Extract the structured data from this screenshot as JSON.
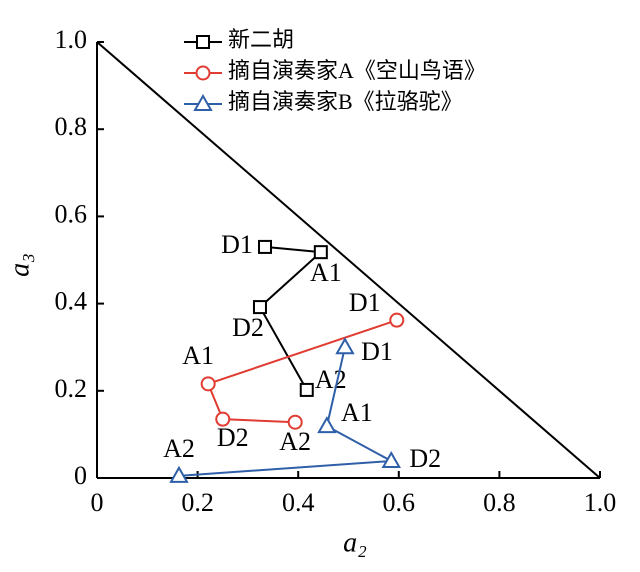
{
  "chart_data": {
    "type": "line",
    "xlabel": "a₂",
    "ylabel": "a₃",
    "xlim": [
      0,
      1
    ],
    "ylim": [
      0,
      1
    ],
    "xticks": [
      0,
      0.2,
      0.4,
      0.6,
      0.8,
      {
        "value": 1,
        "label": "1.0"
      }
    ],
    "yticks": [
      0,
      0.2,
      0.4,
      0.6,
      0.8,
      {
        "value": 1,
        "label": "1.0"
      }
    ],
    "boundary": {
      "x": [
        0,
        1
      ],
      "y": [
        1,
        0
      ],
      "color": "#000000"
    },
    "series": [
      {
        "name": "新二胡",
        "color": "#000000",
        "marker": "square",
        "x": [
          0.334,
          0.445,
          0.324,
          0.417
        ],
        "values": [
          0.53,
          0.518,
          0.392,
          0.202
        ],
        "point_labels": [
          "D1",
          "A1",
          "D2",
          "A2"
        ]
      },
      {
        "name": "摘自演奏家A《空山鸟语》",
        "color": "#e03c31",
        "marker": "circle",
        "x": [
          0.596,
          0.221,
          0.25,
          0.394
        ],
        "values": [
          0.362,
          0.216,
          0.135,
          0.128
        ],
        "point_labels": [
          "D1",
          "A1",
          "D2",
          "A2"
        ]
      },
      {
        "name": "摘自演奏家B《拉骆驼》",
        "color": "#2f5fa8",
        "marker": "triangle",
        "x": [
          0.493,
          0.457,
          0.585,
          0.163
        ],
        "values": [
          0.3,
          0.119,
          0.039,
          0.005
        ],
        "point_labels": [
          "D1",
          "A1",
          "D2",
          "A2"
        ]
      }
    ]
  }
}
